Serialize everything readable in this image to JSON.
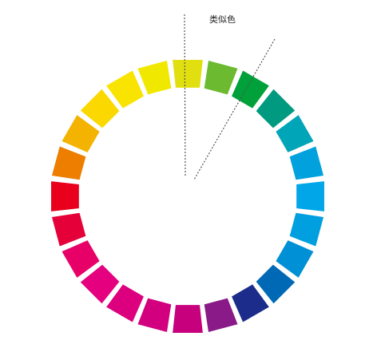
{
  "diagram": {
    "caption": "类似色",
    "segment_colors": [
      "#e2df10",
      "#6bba2f",
      "#00a03a",
      "#009a80",
      "#00a5b8",
      "#00a1dd",
      "#00a6e8",
      "#009fe0",
      "#0090d6",
      "#0069b5",
      "#1c2c8b",
      "#8a1a87",
      "#c7007d",
      "#d2007e",
      "#dc007f",
      "#e4007f",
      "#e60067",
      "#e60039",
      "#e8001c",
      "#ed7e00",
      "#f4b300",
      "#fad800",
      "#f9e300",
      "#f1e800"
    ],
    "guide_lines": "dotted",
    "line_color": "#555555"
  }
}
